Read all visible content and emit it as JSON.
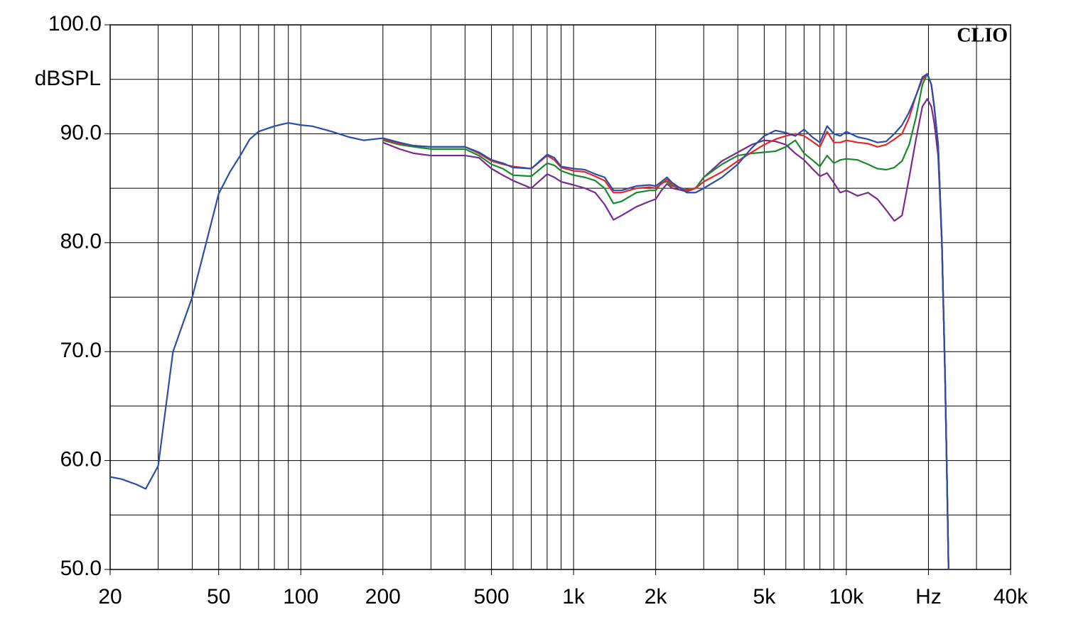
{
  "chart_data": {
    "type": "line",
    "title": "CLIO",
    "ylabel": "dBSPL",
    "xscale": "log",
    "xlim": [
      20,
      40000
    ],
    "ylim": [
      50,
      100
    ],
    "xticks": [
      20,
      50,
      100,
      200,
      500,
      {
        "value": 1000,
        "label": "1k"
      },
      {
        "value": 2000,
        "label": "2k"
      },
      {
        "value": 5000,
        "label": "5k"
      },
      {
        "value": 10000,
        "label": "10k"
      },
      {
        "value": 20000,
        "label": "Hz"
      },
      {
        "value": 40000,
        "label": "40k"
      }
    ],
    "yticks": [
      {
        "value": 50,
        "label": "50.0"
      },
      {
        "value": 60,
        "label": "60.0"
      },
      {
        "value": 70,
        "label": "70.0"
      },
      {
        "value": 80,
        "label": "80.0"
      },
      {
        "value": 90,
        "label": "90.0"
      },
      {
        "value": 100,
        "label": "100.0"
      }
    ],
    "xgrid": [
      30,
      40,
      50,
      60,
      70,
      80,
      90,
      100,
      200,
      300,
      400,
      500,
      600,
      700,
      800,
      900,
      1000,
      2000,
      3000,
      4000,
      5000,
      6000,
      7000,
      8000,
      9000,
      10000,
      20000,
      30000
    ],
    "ygrid": [
      55,
      60,
      65,
      70,
      75,
      80,
      85,
      90,
      95
    ],
    "x": [
      20,
      22,
      25,
      27,
      30,
      34,
      40,
      45,
      50,
      55,
      60,
      65,
      70,
      80,
      90,
      100,
      110,
      130,
      150,
      170,
      200,
      230,
      260,
      300,
      400,
      450,
      500,
      550,
      600,
      700,
      800,
      850,
      900,
      1000,
      1100,
      1200,
      1300,
      1400,
      1500,
      1700,
      1900,
      2000,
      2100,
      2200,
      2300,
      2600,
      2800,
      3000,
      3500,
      4000,
      4500,
      5000,
      5500,
      6000,
      6500,
      7000,
      7500,
      8000,
      8500,
      9000,
      9500,
      10000,
      11000,
      12000,
      13000,
      14000,
      15000,
      16000,
      17000,
      18000,
      19000,
      19800,
      20500,
      21000,
      21700,
      22400,
      23000,
      23400,
      23700
    ],
    "series": [
      {
        "color": "#7b2a8e",
        "values": [
          null,
          null,
          null,
          null,
          null,
          null,
          null,
          null,
          null,
          null,
          null,
          null,
          null,
          null,
          null,
          null,
          null,
          null,
          null,
          null,
          89.2,
          88.6,
          88.2,
          88.0,
          88.0,
          87.8,
          86.8,
          86.2,
          85.7,
          85.0,
          86.3,
          86.0,
          85.6,
          85.3,
          85.0,
          84.6,
          83.5,
          82.1,
          82.5,
          83.3,
          83.8,
          84.0,
          84.8,
          85.4,
          85.0,
          84.7,
          85.0,
          86.0,
          87.5,
          88.3,
          89.0,
          89.4,
          89.3,
          89.0,
          88.2,
          87.6,
          86.8,
          86.1,
          86.4,
          85.5,
          84.6,
          84.8,
          84.3,
          84.6,
          84.0,
          83.0,
          82.0,
          82.5,
          86.0,
          89.5,
          92.5,
          93.2,
          92.5,
          91,
          88,
          80,
          68,
          58,
          50
        ]
      },
      {
        "color": "#1a8a2e",
        "values": [
          null,
          null,
          null,
          null,
          null,
          null,
          null,
          null,
          null,
          null,
          null,
          null,
          null,
          null,
          null,
          null,
          null,
          null,
          null,
          null,
          89.4,
          89.0,
          88.8,
          88.6,
          88.6,
          88.0,
          87.2,
          86.8,
          86.2,
          86.1,
          87.3,
          87.1,
          86.6,
          86.2,
          86.0,
          85.7,
          85.0,
          83.6,
          83.8,
          84.6,
          84.8,
          84.8,
          85.5,
          85.6,
          85.2,
          84.9,
          85.0,
          86.0,
          87.2,
          88.0,
          88.2,
          88.3,
          88.4,
          88.8,
          89.4,
          88.2,
          87.6,
          87.0,
          88.0,
          87.3,
          87.6,
          87.7,
          87.6,
          87.2,
          86.8,
          86.7,
          86.9,
          87.5,
          89.0,
          91.5,
          94.5,
          95.5,
          94.5,
          92.5,
          89,
          80,
          68,
          58,
          50
        ]
      },
      {
        "color": "#e8262a",
        "values": [
          null,
          null,
          null,
          null,
          null,
          null,
          null,
          null,
          null,
          null,
          null,
          null,
          null,
          null,
          null,
          null,
          null,
          null,
          null,
          null,
          89.5,
          89.1,
          88.9,
          88.8,
          88.8,
          88.2,
          87.5,
          87.2,
          87.0,
          86.8,
          88.0,
          87.6,
          86.9,
          86.6,
          86.5,
          86.1,
          85.7,
          84.6,
          84.6,
          85.0,
          85.1,
          85.0,
          85.4,
          85.8,
          85.3,
          84.8,
          85.0,
          85.6,
          86.5,
          87.5,
          88.3,
          89.0,
          89.5,
          89.8,
          90.0,
          89.8,
          89.3,
          88.8,
          90.2,
          89.2,
          89.2,
          89.4,
          89.2,
          89.1,
          88.8,
          89.0,
          89.5,
          90.0,
          91.5,
          93.5,
          95.0,
          95.5,
          94.5,
          92.5,
          89,
          80,
          68,
          58,
          50
        ]
      },
      {
        "color": "#2a4fa8",
        "values": [
          58.5,
          58.3,
          57.8,
          57.4,
          59.5,
          70,
          75,
          80,
          84.5,
          86.5,
          88,
          89.5,
          90.2,
          90.7,
          91,
          90.8,
          90.7,
          90.2,
          89.7,
          89.4,
          89.6,
          89.2,
          88.9,
          88.8,
          88.8,
          88.3,
          87.6,
          87.3,
          86.9,
          86.8,
          88.1,
          87.8,
          87.0,
          86.8,
          86.7,
          86.3,
          86.0,
          84.8,
          84.8,
          85.2,
          85.3,
          85.2,
          85.6,
          86.0,
          85.5,
          84.6,
          84.6,
          85.0,
          86.0,
          87.2,
          88.7,
          89.8,
          90.3,
          90.1,
          89.8,
          90.4,
          89.7,
          89.2,
          90.7,
          90.0,
          89.8,
          90.2,
          89.7,
          89.5,
          89.2,
          89.3,
          90.0,
          90.8,
          92.0,
          93.5,
          95.2,
          95.5,
          94.5,
          92.5,
          89,
          80,
          68,
          58,
          50
        ]
      }
    ]
  }
}
